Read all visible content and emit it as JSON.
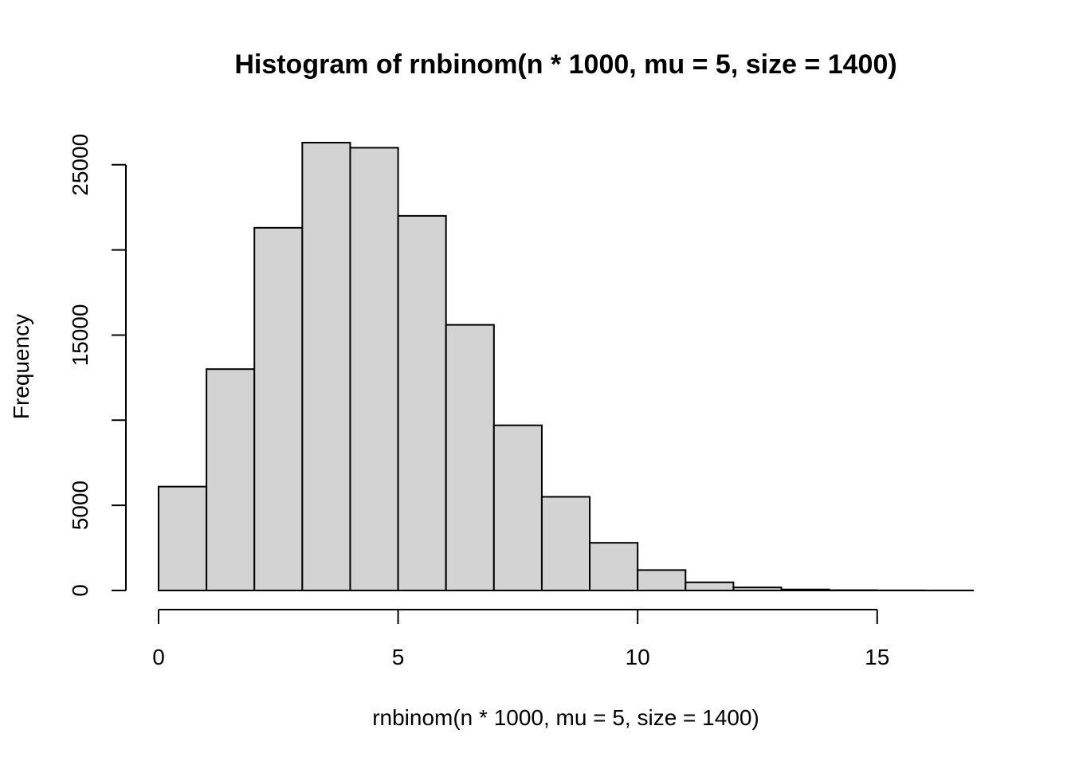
{
  "chart_data": {
    "type": "bar",
    "title": "Histogram of rnbinom(n * 1000, mu = 5, size = 1400)",
    "xlabel": "rnbinom(n * 1000, mu = 5, size = 1400)",
    "ylabel": "Frequency",
    "breaks": [
      0,
      1,
      2,
      3,
      4,
      5,
      6,
      7,
      8,
      9,
      10,
      11,
      12,
      13,
      14,
      15,
      16,
      17
    ],
    "values": [
      6100,
      13000,
      21300,
      26300,
      26000,
      22000,
      15600,
      9700,
      5500,
      2800,
      1200,
      480,
      180,
      60,
      20,
      8,
      3
    ],
    "xlim": [
      0,
      17
    ],
    "ylim": [
      0,
      26300
    ],
    "xticks": [
      0,
      5,
      10,
      15
    ],
    "xtick_labels": [
      "0",
      "5",
      "10",
      "15"
    ],
    "yticks": [
      0,
      5000,
      10000,
      15000,
      20000,
      25000
    ],
    "ytick_labels": [
      "0",
      "5000",
      "",
      "15000",
      "",
      "25000"
    ],
    "grid": false,
    "bar_color": "#d3d3d3"
  }
}
